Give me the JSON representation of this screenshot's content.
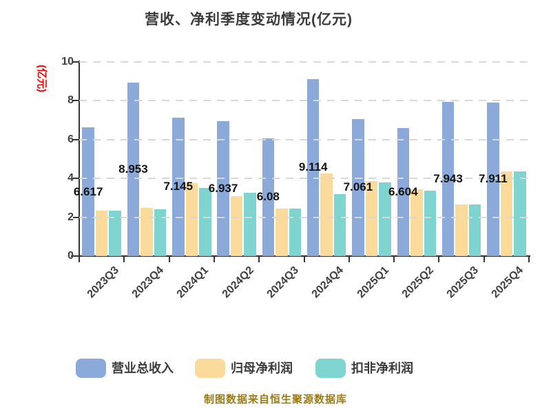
{
  "title": "营收、净利季度变动情况(亿元)",
  "y_axis_label": "(亿元)",
  "footer": "制图数据来自恒生聚源数据库",
  "colors": {
    "revenue": "#8BA9D9",
    "net_profit": "#FBDB9B",
    "non_gaap": "#7FD4D0",
    "axis": "#333333",
    "grid": "#D8D8D8",
    "title_text": "#3B3B3B",
    "tick_text": "#3F3F3F",
    "value_label": "#141414",
    "y_axis_label_text": "#FF0000",
    "footer_text": "#9C7B16",
    "legend_text": "#3B3B3B"
  },
  "legend": [
    {
      "label": "营业总收入",
      "color_key": "revenue"
    },
    {
      "label": "归母净利润",
      "color_key": "net_profit"
    },
    {
      "label": "扣非净利润",
      "color_key": "non_gaap"
    }
  ],
  "chart_data": {
    "type": "bar",
    "categories": [
      "2023Q3",
      "2023Q4",
      "2024Q1",
      "2024Q2",
      "2024Q3",
      "2024Q4",
      "2025Q1",
      "2025Q2",
      "2025Q3",
      "2025Q4"
    ],
    "series": [
      {
        "name": "营业总收入",
        "values": [
          6.617,
          8.953,
          7.145,
          6.937,
          6.08,
          9.114,
          7.061,
          6.604,
          7.943,
          7.911
        ],
        "labeled": true
      },
      {
        "name": "归母净利润",
        "values": [
          2.33,
          2.48,
          3.76,
          3.08,
          2.46,
          4.27,
          3.85,
          3.44,
          2.67,
          4.35
        ],
        "labeled": false
      },
      {
        "name": "扣非净利润",
        "values": [
          2.34,
          2.42,
          3.52,
          3.26,
          2.46,
          3.2,
          3.79,
          3.37,
          2.67,
          4.35
        ],
        "labeled": false
      }
    ],
    "ylim": [
      0,
      10
    ],
    "yticks": [
      0,
      2,
      4,
      6,
      8,
      10
    ],
    "grid": "dashed-horizontal",
    "legend_position": "bottom",
    "value_labels_series": "营业总收入"
  }
}
